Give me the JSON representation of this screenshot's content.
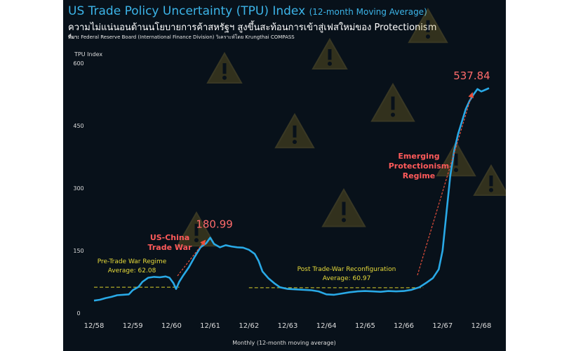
{
  "header": {
    "title": "US Trade Policy Uncertainty (TPU) Index",
    "title_suffix": "(12-month Moving Average)",
    "subtitle": "ความไม่แน่นอนด้านนโยบายการค้าสหรัฐฯ สูงขึ้นสะท้อนการเข้าสู่เฟสใหม่ของ Protectionism",
    "source_label": "ที่มา:",
    "source_text": "Federal Reserve Board (International Finance Division) วิเคราะห์โดย Krungthai COMPASS"
  },
  "colors": {
    "background": "#08111a",
    "line": "#29a9e6",
    "peak_label": "#ff6b6b",
    "regime_label": "#ff5a5a",
    "average_text": "#e8dc3a",
    "average_line": "#d9cf2c",
    "arrow": "#e8503c",
    "axis_text": "#dddddd",
    "title": "#3cb4e8"
  },
  "chart_data": {
    "type": "line",
    "ylabel": "TPU Index",
    "xlabel": "Monthly (12-month moving average)",
    "ylim": [
      0,
      600
    ],
    "yticks": [
      0,
      150,
      300,
      450,
      600
    ],
    "ytick_labels": [
      "0",
      "150",
      "300",
      "450",
      "600"
    ],
    "categories": [
      "12/58",
      "12/59",
      "12/60",
      "12/61",
      "12/62",
      "12/63",
      "12/64",
      "12/65",
      "12/66",
      "12/67",
      "12/68"
    ],
    "grid": false,
    "series": [
      {
        "name": "TPU Index (12-month MA)",
        "x": [
          0,
          0.15,
          0.3,
          0.45,
          0.6,
          0.75,
          0.9,
          1.0,
          1.15,
          1.25,
          1.4,
          1.55,
          1.7,
          1.85,
          1.95,
          2.05,
          2.12,
          2.2,
          2.3,
          2.45,
          2.6,
          2.75,
          2.9,
          3.0,
          3.1,
          3.25,
          3.4,
          3.55,
          3.7,
          3.85,
          4.0,
          4.15,
          4.25,
          4.35,
          4.5,
          4.65,
          4.8,
          5.0,
          5.2,
          5.4,
          5.6,
          5.8,
          6.0,
          6.2,
          6.4,
          6.6,
          6.8,
          7.0,
          7.2,
          7.4,
          7.6,
          7.8,
          8.0,
          8.2,
          8.4,
          8.6,
          8.75,
          8.9,
          9.0,
          9.1,
          9.2,
          9.3,
          9.4,
          9.5,
          9.6,
          9.7,
          9.8,
          9.9,
          10.0,
          10.1,
          10.2
        ],
        "values": [
          30,
          32,
          36,
          39,
          43,
          44,
          45,
          55,
          63,
          75,
          85,
          87,
          86,
          88,
          85,
          72,
          58,
          75,
          90,
          110,
          135,
          158,
          168,
          180.99,
          166,
          158,
          163,
          160,
          158,
          157,
          152,
          142,
          125,
          100,
          84,
          72,
          62,
          58,
          57,
          56,
          55,
          52,
          45,
          44,
          47,
          50,
          52,
          53,
          52,
          51,
          53,
          52,
          53,
          56,
          62,
          74,
          84,
          105,
          150,
          240,
          330,
          390,
          430,
          460,
          490,
          510,
          525,
          537.84,
          532,
          536,
          540
        ]
      }
    ],
    "annotations": {
      "peak_1": {
        "text": "180.99",
        "x": 3.0,
        "y": 180.99
      },
      "peak_2": {
        "text": "537.84",
        "x": 9.9,
        "y": 537.84
      },
      "regime_1": {
        "text": "US-China\nTrade War",
        "lines": [
          "US-China",
          "Trade War"
        ]
      },
      "regime_2": {
        "text": "Emerging\nProtectionism\nRegime",
        "lines": [
          "Emerging",
          "Protectionism",
          "Regime"
        ]
      },
      "avg_1": {
        "lines": [
          "Pre-Trade War Regime",
          "Average: 62.08"
        ],
        "value": 62.08,
        "x_range": [
          0,
          2.2
        ]
      },
      "avg_2": {
        "lines": [
          "Post Trade-War Reconfiguration",
          "Average: 60.97"
        ],
        "value": 60.97,
        "x_range": [
          4.0,
          8.5
        ]
      }
    }
  }
}
